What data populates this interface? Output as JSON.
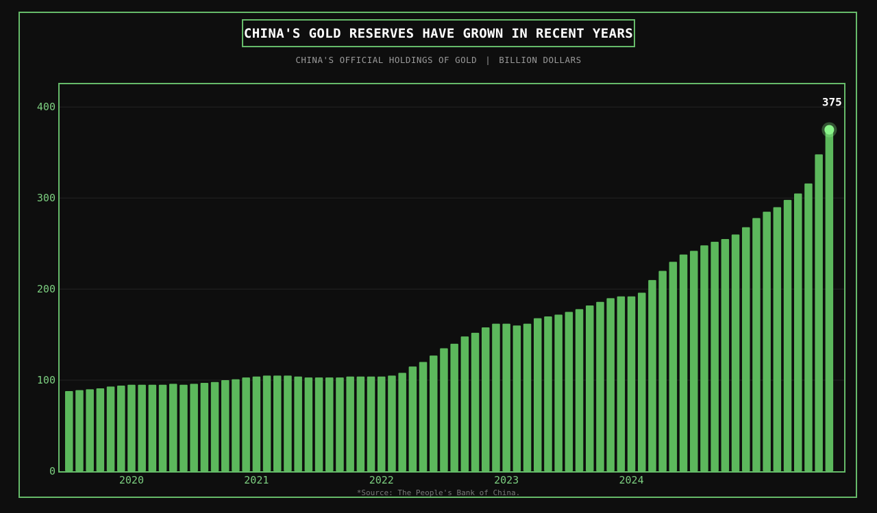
{
  "chart_data": {
    "type": "bar",
    "title": "CHINA'S GOLD RESERVES HAVE GROWN IN RECENT YEARS",
    "subtitle_left": "CHINA'S OFFICIAL HOLDINGS OF GOLD",
    "subtitle_sep": "|",
    "subtitle_right": "BILLION DOLLARS",
    "source": "*Source: The People's Bank of China.",
    "ylim": [
      0,
      425
    ],
    "y_ticks": [
      0,
      100,
      200,
      300,
      400
    ],
    "x_tick_labels": [
      {
        "label": "2020",
        "bar_index": 6
      },
      {
        "label": "2021",
        "bar_index": 18
      },
      {
        "label": "2022",
        "bar_index": 30
      },
      {
        "label": "2023",
        "bar_index": 42
      },
      {
        "label": "2024",
        "bar_index": 54
      }
    ],
    "grid": true,
    "values": [
      88,
      89,
      90,
      91,
      93,
      94,
      95,
      95,
      95,
      95,
      96,
      95,
      96,
      97,
      98,
      100,
      101,
      103,
      104,
      105,
      105,
      105,
      104,
      103,
      103,
      103,
      103,
      104,
      104,
      104,
      104,
      105,
      108,
      115,
      120,
      127,
      135,
      140,
      148,
      152,
      158,
      162,
      162,
      160,
      162,
      168,
      170,
      172,
      175,
      178,
      182,
      186,
      190,
      192,
      192,
      196,
      210,
      220,
      230,
      238,
      242,
      248,
      252,
      255,
      260,
      268,
      278,
      285,
      290,
      298,
      305,
      316,
      348,
      375
    ],
    "highlight": {
      "label": "375",
      "value": 375
    },
    "colors": {
      "bar": "#5cb85c",
      "accent": "#66bb6a",
      "tick": "#7ccf80",
      "highlight": "#8af58a",
      "grid": "#242424"
    }
  }
}
